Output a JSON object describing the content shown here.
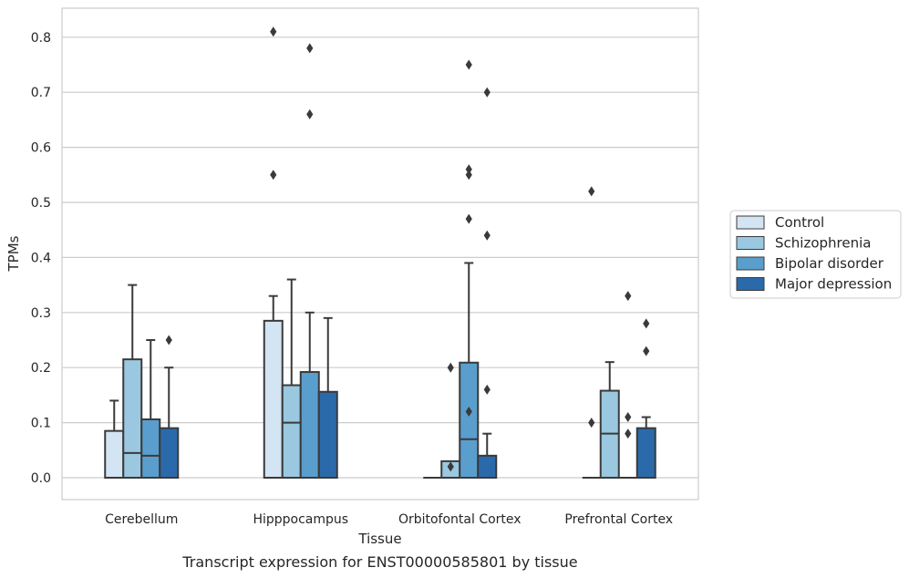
{
  "caption": "Transcript expression for ENST00000585801 by tissue",
  "chart_data": {
    "type": "boxplot",
    "xlabel": "Tissue",
    "ylabel": "TPMs",
    "ylim": [
      -0.04,
      0.855
    ],
    "yticks": [
      0.0,
      0.1,
      0.2,
      0.3,
      0.4,
      0.5,
      0.6,
      0.7,
      0.8
    ],
    "ytick_labels": [
      "0.0",
      "0.1",
      "0.2",
      "0.3",
      "0.4",
      "0.5",
      "0.6",
      "0.7",
      "0.8"
    ],
    "grid": "horizontal",
    "legend_position": "right, outside plot",
    "categories": [
      "Cerebellum",
      "Hipppocampus",
      "Orbitofontal Cortex",
      "Prefrontal Cortex"
    ],
    "series": [
      {
        "name": "Control",
        "color": "#d3e4f3",
        "boxes": [
          {
            "q1": 0.0,
            "median": 0.0,
            "q3": 0.085,
            "whisker_low": 0.0,
            "whisker_high": 0.14,
            "outliers": []
          },
          {
            "q1": 0.0,
            "median": 0.0,
            "q3": 0.285,
            "whisker_low": 0.0,
            "whisker_high": 0.33,
            "outliers": [
              0.81,
              0.55
            ]
          },
          {
            "q1": 0.0,
            "median": 0.0,
            "q3": 0.0,
            "whisker_low": 0.0,
            "whisker_high": 0.0,
            "outliers": []
          },
          {
            "q1": 0.0,
            "median": 0.0,
            "q3": 0.0,
            "whisker_low": 0.0,
            "whisker_high": 0.0,
            "outliers": [
              0.52,
              0.1
            ]
          }
        ]
      },
      {
        "name": "Schizophrenia",
        "color": "#9ac8e0",
        "boxes": [
          {
            "q1": 0.0,
            "median": 0.045,
            "q3": 0.215,
            "whisker_low": 0.0,
            "whisker_high": 0.35,
            "outliers": []
          },
          {
            "q1": 0.0,
            "median": 0.1,
            "q3": 0.168,
            "whisker_low": 0.0,
            "whisker_high": 0.36,
            "outliers": []
          },
          {
            "q1": 0.0,
            "median": 0.0,
            "q3": 0.03,
            "whisker_low": 0.0,
            "whisker_high": 0.03,
            "outliers": [
              0.2,
              0.02
            ]
          },
          {
            "q1": 0.0,
            "median": 0.08,
            "q3": 0.158,
            "whisker_low": 0.0,
            "whisker_high": 0.21,
            "outliers": []
          }
        ]
      },
      {
        "name": "Bipolar disorder",
        "color": "#5a9ecd",
        "boxes": [
          {
            "q1": 0.0,
            "median": 0.04,
            "q3": 0.106,
            "whisker_low": 0.0,
            "whisker_high": 0.25,
            "outliers": []
          },
          {
            "q1": 0.0,
            "median": 0.0,
            "q3": 0.192,
            "whisker_low": 0.0,
            "whisker_high": 0.3,
            "outliers": [
              0.78,
              0.66
            ]
          },
          {
            "q1": 0.0,
            "median": 0.07,
            "q3": 0.209,
            "whisker_low": 0.0,
            "whisker_high": 0.39,
            "outliers": [
              0.75,
              0.56,
              0.55,
              0.47,
              0.12
            ]
          },
          {
            "q1": 0.0,
            "median": 0.0,
            "q3": 0.0,
            "whisker_low": 0.0,
            "whisker_high": 0.0,
            "outliers": [
              0.33,
              0.11,
              0.08
            ]
          }
        ]
      },
      {
        "name": "Major depression",
        "color": "#2a6aab",
        "boxes": [
          {
            "q1": 0.0,
            "median": 0.0,
            "q3": 0.09,
            "whisker_low": 0.0,
            "whisker_high": 0.2,
            "outliers": [
              0.25
            ]
          },
          {
            "q1": 0.0,
            "median": 0.0,
            "q3": 0.156,
            "whisker_low": 0.0,
            "whisker_high": 0.29,
            "outliers": []
          },
          {
            "q1": 0.0,
            "median": 0.0,
            "q3": 0.04,
            "whisker_low": 0.0,
            "whisker_high": 0.08,
            "outliers": [
              0.7,
              0.44,
              0.16
            ]
          },
          {
            "q1": 0.0,
            "median": 0.0,
            "q3": 0.09,
            "whisker_low": 0.0,
            "whisker_high": 0.11,
            "outliers": [
              0.28,
              0.23
            ]
          }
        ]
      }
    ]
  }
}
